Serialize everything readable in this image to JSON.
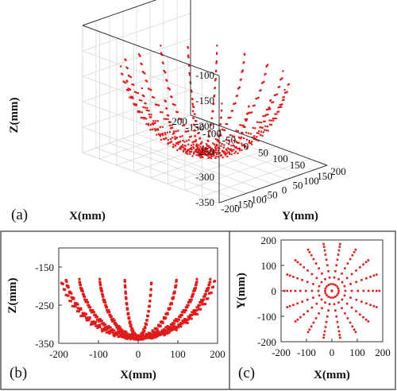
{
  "chart_data": [
    {
      "panel_label": "(a)",
      "type": "scatter",
      "dimensions": 3,
      "xlabel": "X(mm)",
      "ylabel": "Y(mm)",
      "zlabel": "Z(mm)",
      "xlim": [
        -200,
        200
      ],
      "ylim": [
        -200,
        200
      ],
      "zlim": [
        -350,
        -100
      ],
      "xticks": [
        "150",
        "100",
        "50",
        "0",
        "-50",
        "-100",
        "-150",
        "-200"
      ],
      "yticks": [
        "200",
        "150",
        "100",
        "50",
        "0",
        "-50",
        "-100",
        "-150",
        "-200"
      ],
      "zticks": [
        "-100",
        "-150",
        "-200",
        "-250",
        "-300",
        "-350"
      ],
      "grid": true,
      "marker_color": "#e01b1b",
      "description_of_data": "points sampled on a hemispherical surface, vertical sweeps at fixed azimuth",
      "sphere_radius": 200,
      "sphere_center_z": -135,
      "sweep_azimuths_deg": [
        0,
        20,
        40,
        60,
        80,
        100,
        120,
        140,
        160,
        180,
        200,
        220,
        240,
        260,
        280,
        300,
        320,
        340
      ],
      "sweep_polar_deg": [
        0,
        75
      ],
      "points_per_sweep": 40
    },
    {
      "panel_label": "(b)",
      "type": "scatter",
      "projection": "X-Z",
      "xlabel": "X(mm)",
      "ylabel": "Z(mm)",
      "xlim": [
        -200,
        200
      ],
      "ylim": [
        -350,
        -100
      ],
      "xticks": [
        "-200",
        "-100",
        "0",
        "100",
        "200"
      ],
      "yticks": [
        "-150",
        "-250",
        "-350"
      ],
      "grid": false,
      "marker_color": "#e01b1b"
    },
    {
      "panel_label": "(c)",
      "type": "scatter",
      "projection": "X-Y",
      "xlabel": "X(mm)",
      "ylabel": "Y(mm)",
      "xlim": [
        -200,
        200
      ],
      "ylim": [
        -200,
        200
      ],
      "xticks": [
        "-200",
        "-100",
        "0",
        "100",
        "200"
      ],
      "yticks": [
        "200",
        "100",
        "0",
        "-100",
        "-200"
      ],
      "grid": false,
      "marker_color": "#e01b1b"
    }
  ]
}
